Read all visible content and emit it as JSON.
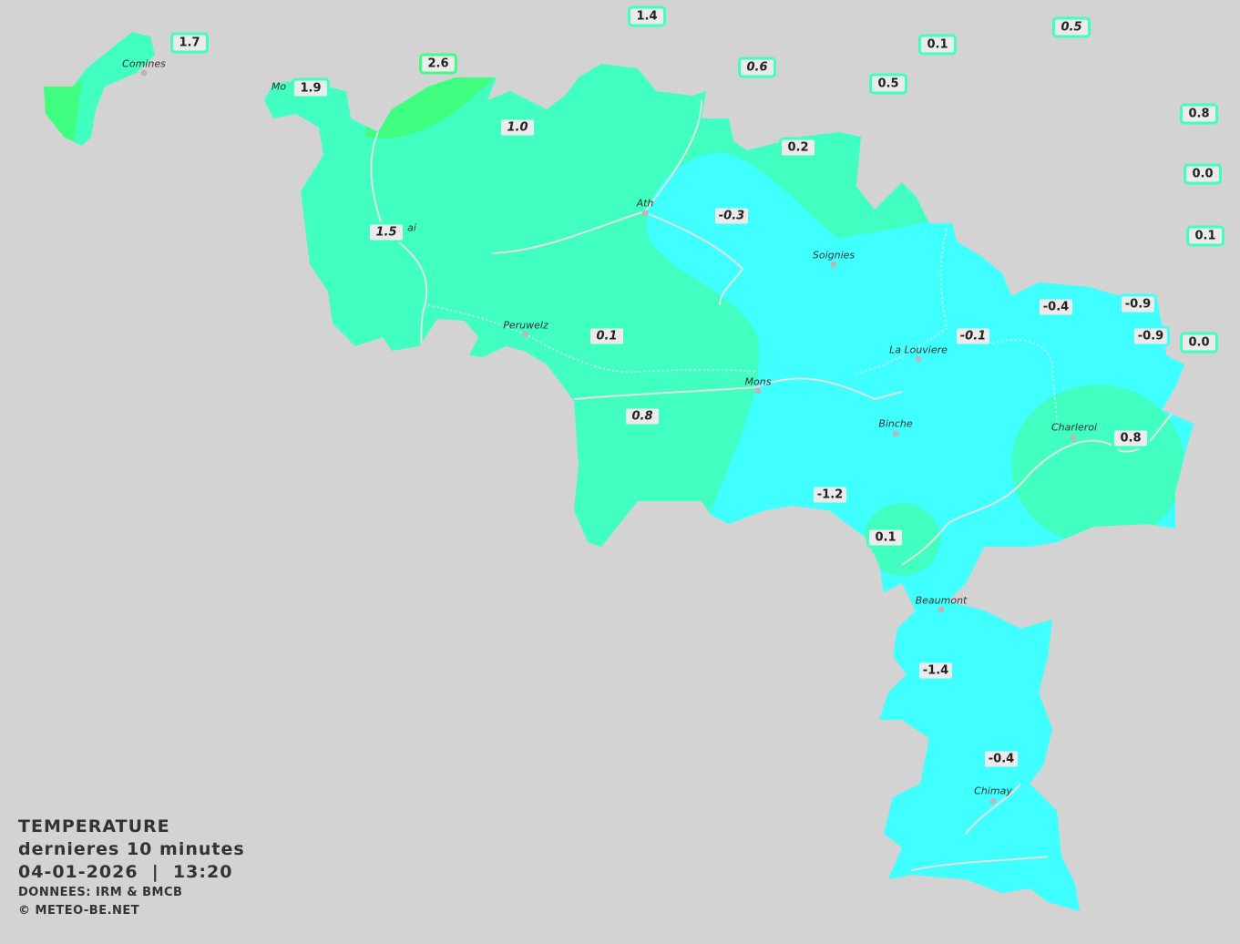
{
  "legend": {
    "title": "TEMPERATURE",
    "period": "dernieres 10 minutes",
    "datetime": "04-01-2026  |  13:20",
    "source": "DONNEES: IRM & BMCB",
    "copyright": "© METEO-BE.NET"
  },
  "colors": {
    "background": "#d3d3d3",
    "cold": "#40ffff",
    "mild": "#40ffc0",
    "warm": "#40ff80"
  },
  "cities": [
    "Comines",
    "Mo",
    "ai",
    "Ath",
    "Soignies",
    "Peruwelz",
    "La Louviere",
    "Mons",
    "Binche",
    "Charleroi",
    "Beaumont",
    "Chimay"
  ],
  "stations": [
    "1.4",
    "1.7",
    "2.6",
    "0.1",
    "0.5",
    "0.6",
    "0.5",
    "0.8",
    "1.9",
    "1.0",
    "0.2",
    "0.0",
    "0.1",
    "-0.3",
    "1.5",
    "-0.4",
    "-0.9",
    "-0.9",
    "0.0",
    "0.1",
    "-0.1",
    "0.8",
    "0.8",
    "-1.2",
    "0.1",
    "-1.4",
    "-0.4"
  ]
}
